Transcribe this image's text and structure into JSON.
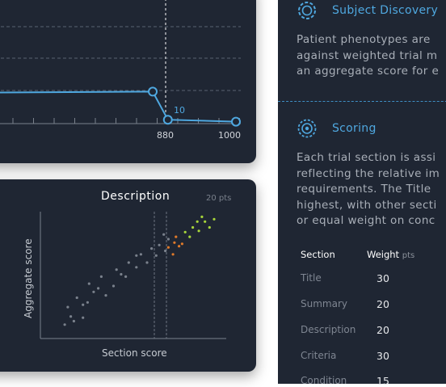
{
  "top_chart": {
    "x_ticks": [
      "880",
      "1000"
    ],
    "callout": "10",
    "line_points": [
      [
        0,
        0.32
      ],
      [
        0.67,
        0.33
      ],
      [
        0.73,
        0.04
      ],
      [
        1.0,
        0.02
      ]
    ]
  },
  "description_chart": {
    "title": "Description",
    "points_label": "20 pts",
    "xlabel": "Section score",
    "ylabel": "Aggregate score"
  },
  "chart_data": {
    "type": "scatter",
    "title": "Description",
    "xlabel": "Section score",
    "ylabel": "Aggregate score",
    "series": [
      {
        "color": "#7a818c",
        "points": [
          [
            0.08,
            0.07
          ],
          [
            0.12,
            0.14
          ],
          [
            0.1,
            0.22
          ],
          [
            0.2,
            0.13
          ],
          [
            0.16,
            0.3
          ],
          [
            0.23,
            0.26
          ],
          [
            0.27,
            0.35
          ],
          [
            0.24,
            0.42
          ],
          [
            0.35,
            0.32
          ],
          [
            0.32,
            0.48
          ],
          [
            0.4,
            0.4
          ],
          [
            0.42,
            0.54
          ],
          [
            0.48,
            0.48
          ],
          [
            0.5,
            0.6
          ],
          [
            0.55,
            0.56
          ],
          [
            0.58,
            0.67
          ],
          [
            0.62,
            0.6
          ],
          [
            0.65,
            0.72
          ],
          [
            0.68,
            0.66
          ],
          [
            0.7,
            0.75
          ],
          [
            0.74,
            0.7
          ],
          [
            0.76,
            0.8
          ],
          [
            0.73,
            0.84
          ],
          [
            0.55,
            0.66
          ],
          [
            0.45,
            0.5
          ],
          [
            0.3,
            0.38
          ],
          [
            0.2,
            0.24
          ],
          [
            0.14,
            0.1
          ]
        ]
      },
      {
        "color": "#e07a2a",
        "points": [
          [
            0.76,
            0.73
          ],
          [
            0.8,
            0.77
          ],
          [
            0.83,
            0.74
          ],
          [
            0.81,
            0.82
          ],
          [
            0.85,
            0.76
          ],
          [
            0.79,
            0.67
          ]
        ]
      },
      {
        "color": "#a8d63a",
        "points": [
          [
            0.87,
            0.86
          ],
          [
            0.92,
            0.9
          ],
          [
            0.96,
            0.87
          ],
          [
            1.0,
            0.95
          ],
          [
            0.95,
            0.95
          ],
          [
            0.9,
            0.82
          ],
          [
            1.03,
            0.9
          ],
          [
            1.06,
            0.97
          ],
          [
            0.98,
            0.99
          ]
        ]
      }
    ]
  },
  "panel": {
    "section1_title": "Subject Discovery",
    "section1_text": [
      "Patient phenotypes are",
      "against weighted trial m",
      "an aggregate score for e"
    ],
    "section2_title": "Scoring",
    "section2_text": [
      "Each trial section is assi",
      "reflecting the relative im",
      "requirements. The Title",
      "highest, with other secti",
      "or equal weight on conc"
    ],
    "table": {
      "col1": "Section",
      "col2": "Weight",
      "col2_unit": "pts",
      "rows": [
        {
          "label": "Title",
          "value": "30"
        },
        {
          "label": "Summary",
          "value": "20"
        },
        {
          "label": "Description",
          "value": "20"
        },
        {
          "label": "Criteria",
          "value": "30"
        },
        {
          "label": "Condition",
          "value": "15"
        }
      ]
    }
  }
}
